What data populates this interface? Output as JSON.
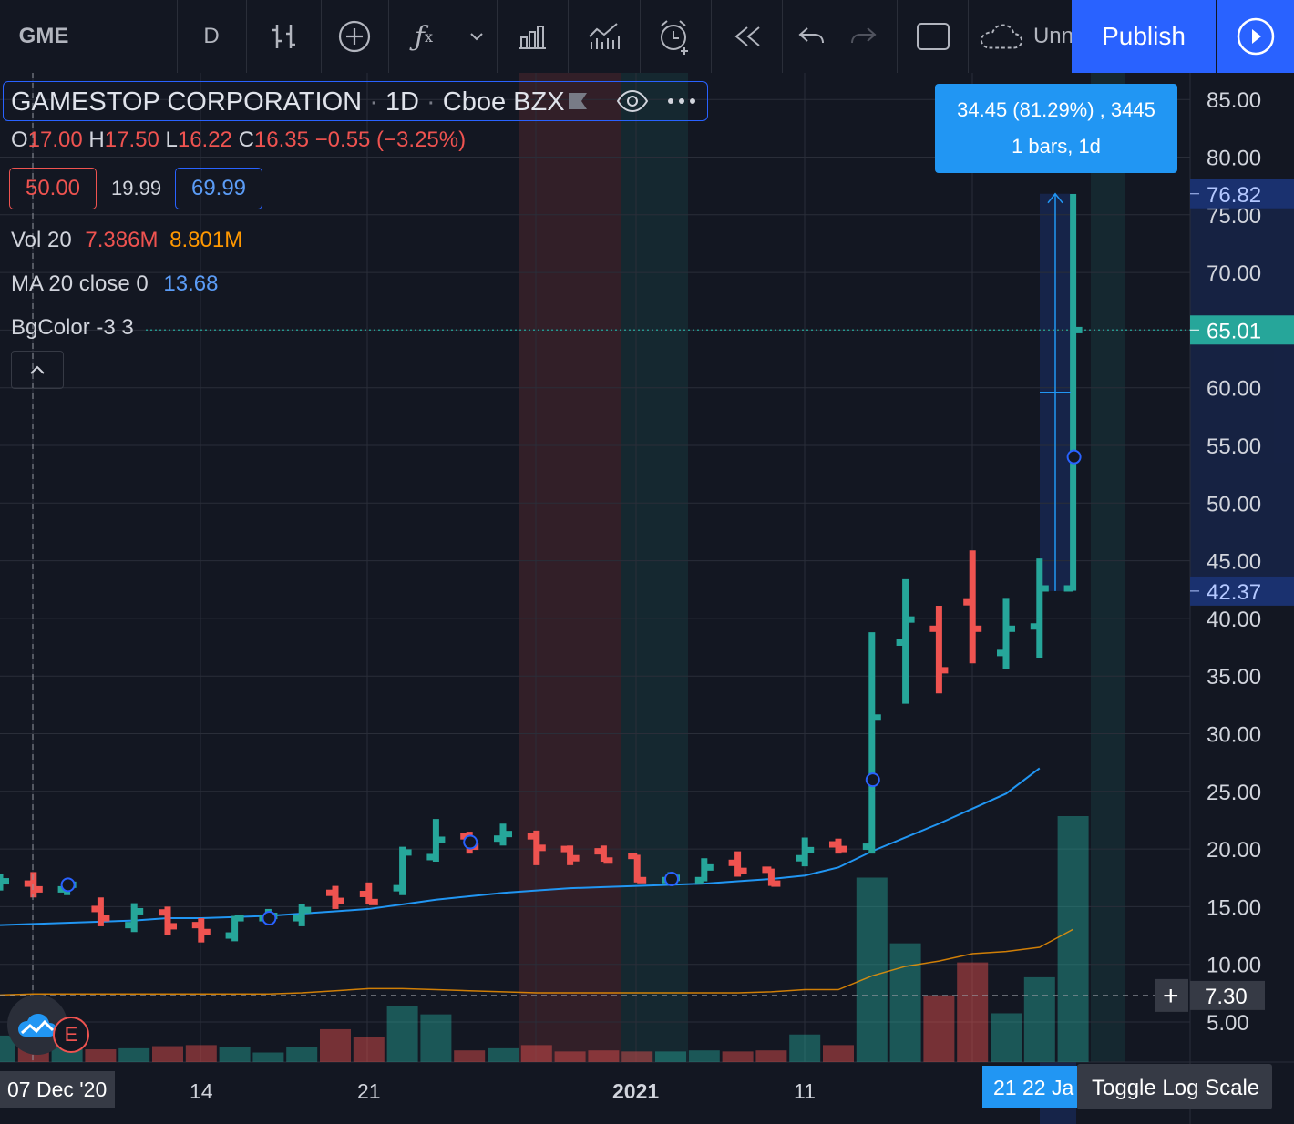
{
  "toolbar": {
    "symbol": "GME",
    "interval": "D",
    "bar_style_icon": "bar-style-icon",
    "compare_icon": "add-symbol-icon",
    "indicators_icon": "fx-icon",
    "chevron_icon": "chevron-down-icon",
    "templates_icon": "templates-icon",
    "financials_icon": "financials-icon",
    "alert_icon": "alarm-clock-icon",
    "replay_icon": "rewind-icon",
    "undo_icon": "undo-icon",
    "redo_icon": "redo-icon",
    "layout_icon": "fullscreen-icon",
    "cloud_label": "Unn",
    "publish_label": "Publish",
    "play_icon": "play-icon",
    "accent": "#2962ff"
  },
  "legend": {
    "title": "GAMESTOP CORPORATION",
    "interval": "1D",
    "exchange": "Cboe BZX",
    "o_label": "O",
    "o_value": "17.00",
    "h_label": "H",
    "h_value": "17.50",
    "l_label": "L",
    "l_value": "16.22",
    "c_label": "C",
    "c_value": "16.35",
    "change": "−0.55 (−3.25%)",
    "bid": "50.00",
    "spread": "19.99",
    "ask": "69.99",
    "vol_label": "Vol 20",
    "vol_value1": "7.386M",
    "vol_value2": "8.801M",
    "ma_label": "MA 20 close 0",
    "ma_value": "13.68",
    "bg_label": "BgColor -3 3",
    "collapse_icon": "chevron-up-icon"
  },
  "measure": {
    "line1": "34.45 (81.29%) , 3445",
    "line2": "1 bars, 1d"
  },
  "price_axis": {
    "ticks": [
      "85.00",
      "80.00",
      "75.00",
      "70.00",
      "65.00",
      "60.00",
      "55.00",
      "50.00",
      "45.00",
      "40.00",
      "35.00",
      "30.00",
      "25.00",
      "20.00",
      "15.00",
      "10.00",
      "5.00"
    ],
    "label_high": "76.82",
    "label_last": "65.01",
    "label_low": "42.37",
    "crosshair_price": "7.30",
    "plus_icon": "plus-icon"
  },
  "time_axis": {
    "crosshair_date": "07 Dec '20",
    "ticks": [
      "14",
      "21",
      "2021",
      "11"
    ],
    "selected_range": "21  22  Ja",
    "toggle_log": "Toggle Log Scale"
  },
  "chart_data": {
    "type": "bar",
    "symbol": "GME",
    "bars": [
      {
        "o": 17.2,
        "h": 17.8,
        "l": 16.4,
        "c": 17.2
      },
      {
        "o": 17.0,
        "h": 18.0,
        "l": 15.8,
        "c": 16.5
      },
      {
        "o": 16.5,
        "h": 17.3,
        "l": 16.0,
        "c": 16.9
      },
      {
        "o": 14.8,
        "h": 15.8,
        "l": 13.3,
        "c": 14.0
      },
      {
        "o": 13.4,
        "h": 15.3,
        "l": 12.8,
        "c": 14.6
      },
      {
        "o": 14.5,
        "h": 15.0,
        "l": 12.5,
        "c": 13.3
      },
      {
        "o": 13.4,
        "h": 14.0,
        "l": 11.9,
        "c": 12.8
      },
      {
        "o": 12.5,
        "h": 14.2,
        "l": 12.0,
        "c": 14.0
      },
      {
        "o": 14.0,
        "h": 14.8,
        "l": 13.5,
        "c": 14.2
      },
      {
        "o": 14.0,
        "h": 15.2,
        "l": 13.3,
        "c": 14.7
      },
      {
        "o": 16.2,
        "h": 16.8,
        "l": 14.8,
        "c": 15.5
      },
      {
        "o": 16.1,
        "h": 17.1,
        "l": 15.2,
        "c": 15.4
      },
      {
        "o": 16.6,
        "h": 20.2,
        "l": 16.0,
        "c": 19.7
      },
      {
        "o": 19.3,
        "h": 22.6,
        "l": 18.9,
        "c": 20.8
      },
      {
        "o": 21.1,
        "h": 21.5,
        "l": 19.6,
        "c": 20.2
      },
      {
        "o": 20.9,
        "h": 22.2,
        "l": 20.3,
        "c": 21.3
      },
      {
        "o": 21.1,
        "h": 21.6,
        "l": 18.6,
        "c": 20.1
      },
      {
        "o": 20.0,
        "h": 20.3,
        "l": 18.6,
        "c": 19.2
      },
      {
        "o": 19.8,
        "h": 20.3,
        "l": 18.9,
        "c": 19.0
      },
      {
        "o": 19.4,
        "h": 19.5,
        "l": 17.1,
        "c": 17.3
      },
      {
        "o": 17.3,
        "h": 18.0,
        "l": 17.0,
        "c": 17.5
      },
      {
        "o": 17.3,
        "h": 19.2,
        "l": 17.2,
        "c": 18.4
      },
      {
        "o": 18.8,
        "h": 19.8,
        "l": 17.6,
        "c": 18.1
      },
      {
        "o": 18.2,
        "h": 18.3,
        "l": 16.8,
        "c": 17.0
      },
      {
        "o": 19.2,
        "h": 21.0,
        "l": 18.5,
        "c": 19.9
      },
      {
        "o": 20.4,
        "h": 20.9,
        "l": 19.6,
        "c": 20.0
      },
      {
        "o": 20.2,
        "h": 38.8,
        "l": 19.6,
        "c": 31.4
      },
      {
        "o": 37.9,
        "h": 43.4,
        "l": 32.6,
        "c": 39.9
      },
      {
        "o": 39.1,
        "h": 41.1,
        "l": 33.5,
        "c": 35.5
      },
      {
        "o": 41.4,
        "h": 45.9,
        "l": 36.1,
        "c": 39.1
      },
      {
        "o": 37.0,
        "h": 41.7,
        "l": 35.6,
        "c": 39.1
      },
      {
        "o": 39.3,
        "h": 45.2,
        "l": 36.6,
        "c": 42.6
      },
      {
        "o": 42.6,
        "h": 76.8,
        "l": 42.4,
        "c": 65.0
      }
    ],
    "volume_m": [
      2.5,
      2.6,
      2.1,
      1.2,
      1.3,
      1.5,
      1.6,
      1.4,
      0.9,
      1.4,
      3.1,
      2.4,
      5.3,
      4.5,
      1.1,
      1.3,
      1.6,
      1.0,
      1.1,
      1.0,
      1.0,
      1.1,
      1.0,
      1.1,
      2.6,
      1.6,
      17.4,
      11.2,
      6.3,
      9.4,
      4.6,
      8.0,
      23.2
    ],
    "ma20": [
      13.4,
      13.5,
      13.6,
      13.7,
      13.8,
      14.0,
      14.0,
      14.1,
      14.2,
      14.4,
      14.6,
      14.8,
      15.2,
      15.6,
      15.9,
      16.2,
      16.4,
      16.6,
      16.7,
      16.8,
      16.9,
      17.0,
      17.2,
      17.4,
      17.7,
      18.4,
      19.8,
      21.0,
      22.2,
      23.5,
      24.8,
      27.0
    ],
    "ylim": [
      0,
      88
    ]
  }
}
